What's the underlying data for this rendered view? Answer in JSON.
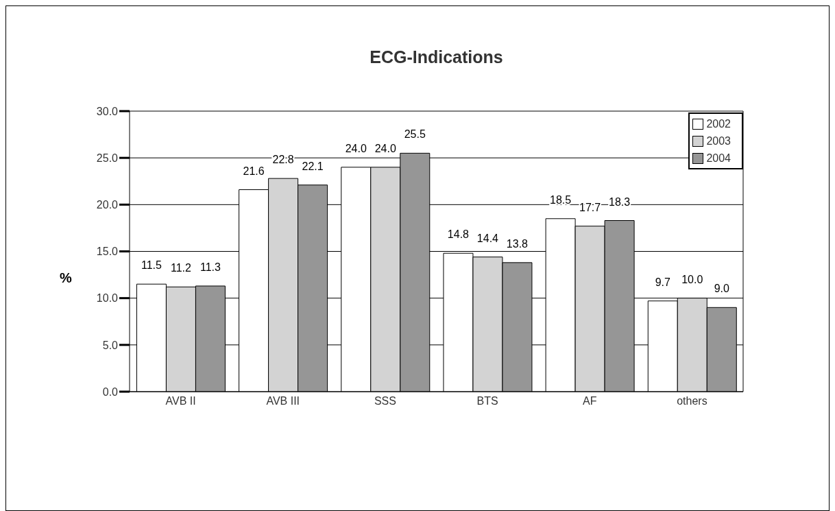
{
  "chart_data": {
    "type": "bar",
    "title": "ECG-Indications",
    "ylabel": "%",
    "categories": [
      "AVB II",
      "AVB III",
      "SSS",
      "BTS",
      "AF",
      "others"
    ],
    "series": [
      {
        "name": "2002",
        "color": "#ffffff",
        "values": [
          11.5,
          21.6,
          24.0,
          14.8,
          18.5,
          9.7
        ],
        "value_labels": [
          "11.5",
          "21.6",
          "24.0",
          "14.8",
          "18.5",
          "9.7"
        ]
      },
      {
        "name": "2003",
        "color": "#d3d3d3",
        "values": [
          11.2,
          22.8,
          24.0,
          14.4,
          17.7,
          10.0
        ],
        "value_labels": [
          "11.2",
          "22.8",
          "24.0",
          "14.4",
          "17.7",
          "10.0"
        ]
      },
      {
        "name": "2004",
        "color": "#969696",
        "values": [
          11.3,
          22.1,
          25.5,
          13.8,
          18.3,
          9.0
        ],
        "value_labels": [
          "11.3",
          "22.1",
          "25.5",
          "13.8",
          "18.3",
          "9.0"
        ]
      }
    ],
    "ylim": [
      0,
      30
    ],
    "yticks": [
      {
        "value": 0,
        "label": "0.0"
      },
      {
        "value": 5,
        "label": "5.0"
      },
      {
        "value": 10,
        "label": "10.0"
      },
      {
        "value": 15,
        "label": "15.0"
      },
      {
        "value": 20,
        "label": "20.0"
      },
      {
        "value": 25,
        "label": "25.0"
      },
      {
        "value": 30,
        "label": "30.0"
      }
    ],
    "grid": "y",
    "legend": "top right"
  }
}
